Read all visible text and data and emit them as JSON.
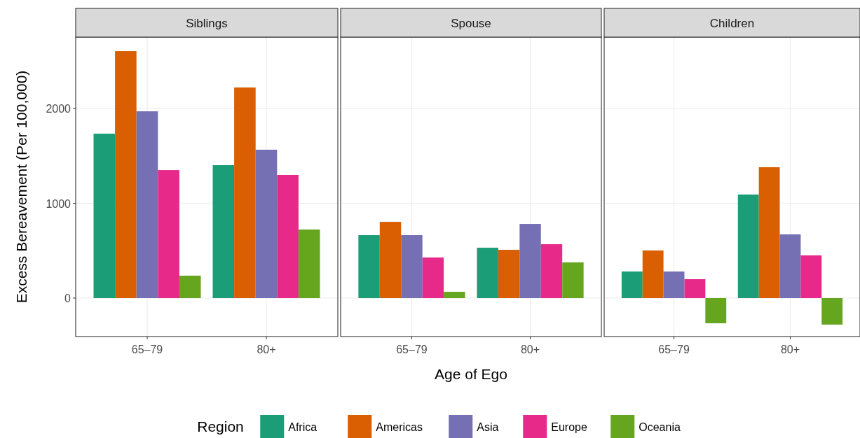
{
  "chart_data": [
    {
      "type": "bar",
      "title": "Siblings",
      "ylabel": "Excess Bereavement (Per 100,000)",
      "categories": [
        "65–79",
        "80+"
      ],
      "ylim": [
        -406,
        2753
      ],
      "yticks": [
        0,
        1000,
        2000
      ],
      "grid": true,
      "legend": "bottom",
      "legend_title": "Region",
      "series": [
        {
          "name": "Africa",
          "color": "#1b9e77",
          "values": [
            1734,
            1402
          ]
        },
        {
          "name": "Americas",
          "color": "#d95f02",
          "values": [
            2605,
            2221
          ]
        },
        {
          "name": "Asia",
          "color": "#7570b3",
          "values": [
            1970,
            1565
          ]
        },
        {
          "name": "Europe",
          "color": "#e7298a",
          "values": [
            1350,
            1299
          ]
        },
        {
          "name": "Oceania",
          "color": "#66a61e",
          "values": [
            236,
            723
          ]
        }
      ]
    },
    {
      "type": "bar",
      "title": "Spouse",
      "xlabel": "Age of Ego",
      "categories": [
        "65–79",
        "80+"
      ],
      "ylim": [
        -406,
        2753
      ],
      "yticks": [
        0,
        1000,
        2000
      ],
      "grid": true,
      "tick_labels": "x",
      "series": [
        {
          "color": "#1b9e77",
          "values": [
            664,
            531
          ]
        },
        {
          "color": "#d95f02",
          "values": [
            804,
            509
          ]
        },
        {
          "color": "#7570b3",
          "values": [
            664,
            782
          ]
        },
        {
          "color": "#e7298a",
          "values": [
            428,
            568
          ]
        },
        {
          "color": "#66a61e",
          "values": [
            66,
            376
          ]
        }
      ]
    },
    {
      "type": "bar",
      "title": "Children",
      "categories": [
        "65–79",
        "80+"
      ],
      "ylim": [
        -406,
        2753
      ],
      "yticks": [
        0,
        1000,
        2000
      ],
      "grid": true,
      "tick_labels": "x",
      "series": [
        {
          "color": "#1b9e77",
          "values": [
            280,
            1092
          ]
        },
        {
          "color": "#d95f02",
          "values": [
            502,
            1380
          ]
        },
        {
          "color": "#7570b3",
          "values": [
            280,
            672
          ]
        },
        {
          "color": "#e7298a",
          "values": [
            199,
            450
          ]
        },
        {
          "color": "#66a61e",
          "values": [
            -266,
            -280
          ]
        }
      ]
    }
  ]
}
